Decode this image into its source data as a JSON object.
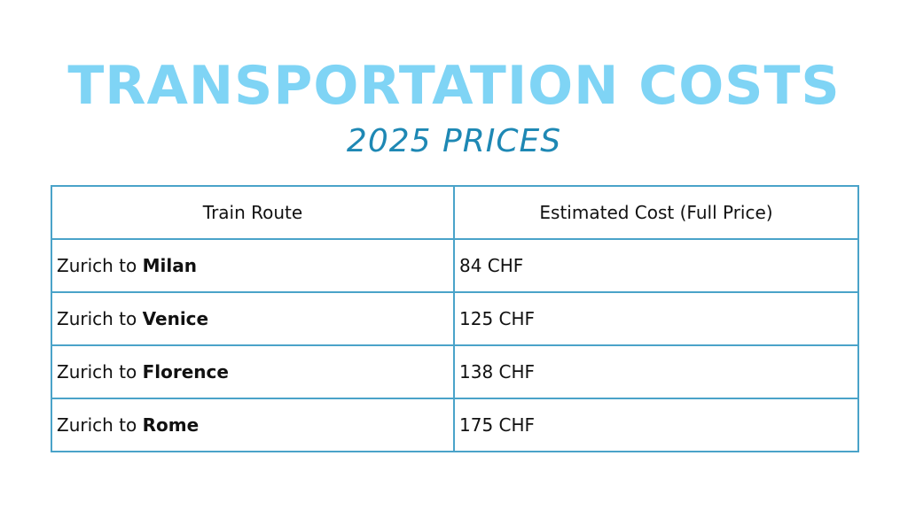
{
  "title": "TRANSPORTATION COSTS",
  "subtitle": "2025 PRICES",
  "table": {
    "headers": [
      "Train Route",
      "Estimated Cost (Full Price)"
    ],
    "rows": [
      {
        "from": "Zurich to ",
        "to": "Milan",
        "cost": "84 CHF"
      },
      {
        "from": "Zurich to ",
        "to": "Venice",
        "cost": "125 CHF"
      },
      {
        "from": "Zurich to ",
        "to": "Florence",
        "cost": "138 CHF"
      },
      {
        "from": "Zurich to ",
        "to": "Rome",
        "cost": "175 CHF"
      }
    ]
  },
  "colors": {
    "title": "#7fd4f5",
    "subtitle": "#1e88b4",
    "table_border": "#4aa3c9"
  }
}
